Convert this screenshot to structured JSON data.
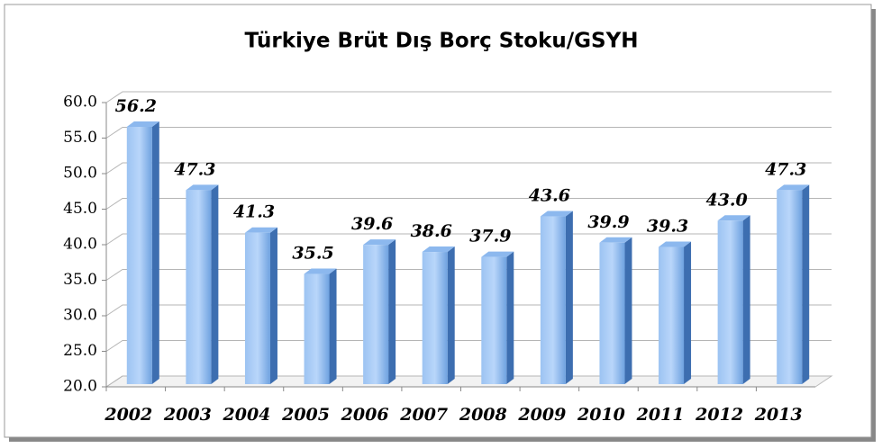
{
  "chart_data": {
    "type": "bar",
    "title": "Türkiye Brüt Dış Borç Stoku/GSYH",
    "categories": [
      "2002",
      "2003",
      "2004",
      "2005",
      "2006",
      "2007",
      "2008",
      "2009",
      "2010",
      "2011",
      "2012",
      "2013"
    ],
    "values": [
      56.2,
      47.3,
      41.3,
      35.5,
      39.6,
      38.6,
      37.9,
      43.6,
      39.9,
      39.3,
      43.0,
      47.3
    ],
    "value_labels": [
      "56.2",
      "47.3",
      "41.3",
      "35.5",
      "39.6",
      "38.6",
      "37.9",
      "43.6",
      "39.9",
      "39.3",
      "43.0",
      "47.3"
    ],
    "color": "#5b9bd5",
    "ylim": [
      20,
      60
    ],
    "yticks": [
      {
        "value": 20,
        "label": "20.0"
      },
      {
        "value": 25,
        "label": "25.0"
      },
      {
        "value": 30,
        "label": "30.0"
      },
      {
        "value": 35,
        "label": "35.0"
      },
      {
        "value": 40,
        "label": "40.0"
      },
      {
        "value": 45,
        "label": "45.0"
      },
      {
        "value": 50,
        "label": "50.0"
      },
      {
        "value": 55,
        "label": "55.0"
      },
      {
        "value": 60,
        "label": "60.0"
      }
    ],
    "grid": true
  }
}
